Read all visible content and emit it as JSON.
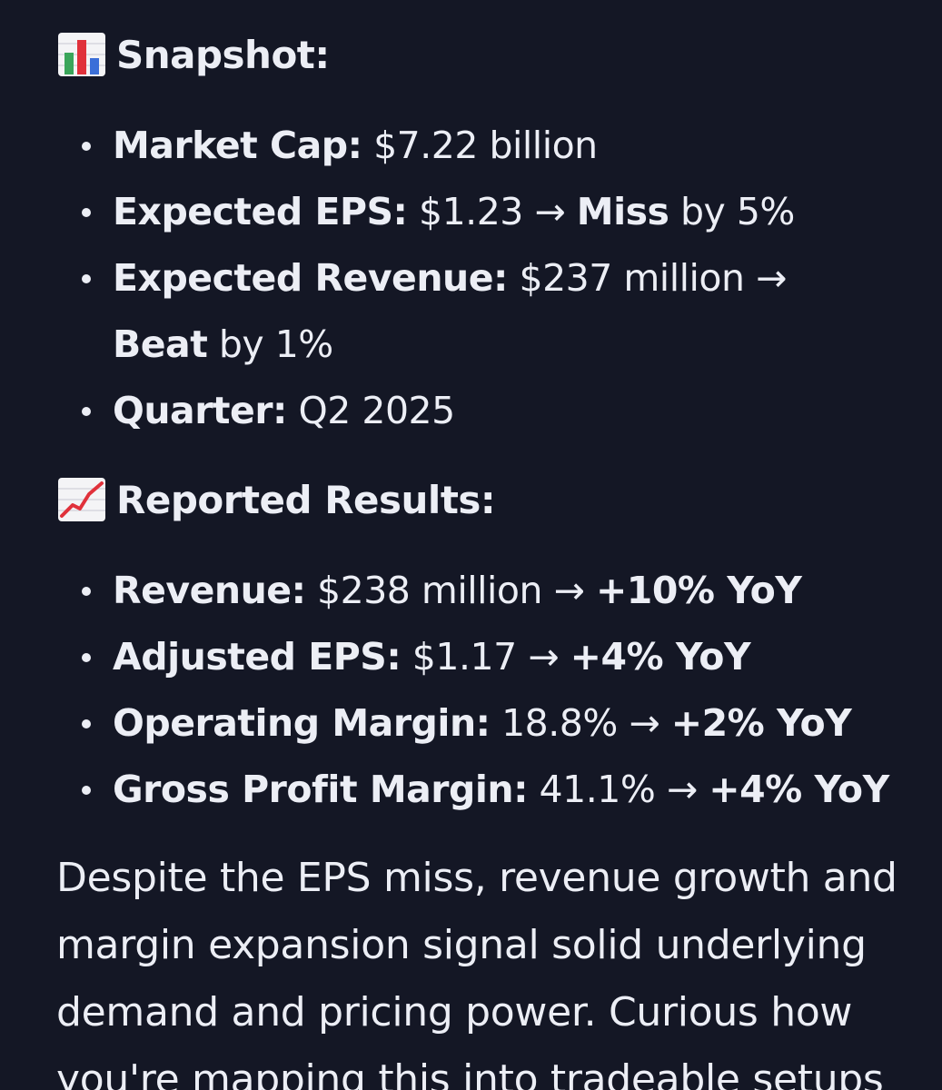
{
  "snapshot": {
    "title": "Snapshot:",
    "icon": "bar-chart-icon",
    "items": [
      {
        "label": "Market Cap:",
        "value": "$7.22 billion"
      },
      {
        "label": "Expected EPS:",
        "value": "$1.23 →",
        "bold2": "Miss",
        "tail": "by 5%"
      },
      {
        "label": "Expected Revenue:",
        "value": "$237 million →",
        "bold2": "Beat",
        "tail": "by 1%"
      },
      {
        "label": "Quarter:",
        "value": "Q2 2025"
      }
    ]
  },
  "results": {
    "title": "Reported Results:",
    "icon": "chart-increasing-icon",
    "items": [
      {
        "label": "Revenue:",
        "value": "$238 million →",
        "bold2": "+10% YoY"
      },
      {
        "label": "Adjusted EPS:",
        "value": "$1.17 →",
        "bold2": "+4% YoY"
      },
      {
        "label": "Operating Margin:",
        "value": "18.8% →",
        "bold2": "+2% YoY"
      },
      {
        "label": "Gross Profit Margin:",
        "value": "41.1% →",
        "bold2": "+4% YoY"
      }
    ]
  },
  "paragraph": "Despite the EPS miss, revenue growth and margin expansion signal solid underlying demand and pricing power. Curious how you're mapping this into tradeable setups",
  "colors": {
    "background": "#141725",
    "text": "#eceef5",
    "chart_red": "#e0313b",
    "chart_blue": "#3b6fd8",
    "chart_green": "#3aa55a"
  }
}
